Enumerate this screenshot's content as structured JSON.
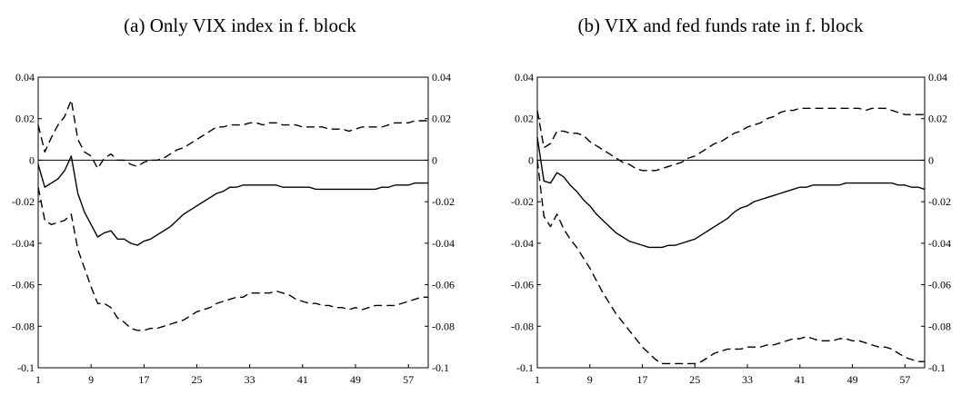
{
  "chart_data": [
    {
      "type": "line",
      "title": "(a)  Only VIX index in f. block",
      "xlabel": "",
      "ylabel": "",
      "xlim": [
        1,
        60
      ],
      "ylim": [
        -0.1,
        0.04
      ],
      "x_ticks": [
        "1",
        "9",
        "17",
        "25",
        "33",
        "41",
        "49",
        "57"
      ],
      "y_ticks": [
        "0.04",
        "0.02",
        "0",
        "-0.02",
        "-0.04",
        "-0.06",
        "-0.08",
        "-0.1"
      ],
      "zero_line": true,
      "series": [
        {
          "style": "solid",
          "x": [
            1,
            2,
            3,
            4,
            5,
            6,
            7,
            8,
            9,
            10,
            11,
            12,
            13,
            14,
            15,
            16,
            17,
            18,
            19,
            20,
            21,
            22,
            23,
            24,
            25,
            26,
            27,
            28,
            29,
            30,
            31,
            32,
            33,
            34,
            35,
            36,
            37,
            38,
            39,
            40,
            41,
            42,
            43,
            44,
            45,
            46,
            47,
            48,
            49,
            50,
            51,
            52,
            53,
            54,
            55,
            56,
            57,
            58,
            59,
            60
          ],
          "values": [
            -0.002,
            -0.013,
            -0.011,
            -0.009,
            -0.005,
            0.002,
            -0.016,
            -0.025,
            -0.031,
            -0.037,
            -0.035,
            -0.034,
            -0.038,
            -0.038,
            -0.04,
            -0.041,
            -0.039,
            -0.038,
            -0.036,
            -0.034,
            -0.032,
            -0.029,
            -0.026,
            -0.024,
            -0.022,
            -0.02,
            -0.018,
            -0.016,
            -0.015,
            -0.013,
            -0.013,
            -0.012,
            -0.012,
            -0.012,
            -0.012,
            -0.012,
            -0.012,
            -0.013,
            -0.013,
            -0.013,
            -0.013,
            -0.013,
            -0.014,
            -0.014,
            -0.014,
            -0.014,
            -0.014,
            -0.014,
            -0.014,
            -0.014,
            -0.014,
            -0.014,
            -0.013,
            -0.013,
            -0.012,
            -0.012,
            -0.012,
            -0.011,
            -0.011,
            -0.011
          ]
        },
        {
          "style": "dashed",
          "x": [
            1,
            2,
            3,
            4,
            5,
            6,
            7,
            8,
            9,
            10,
            11,
            12,
            13,
            14,
            15,
            16,
            17,
            18,
            19,
            20,
            21,
            22,
            23,
            24,
            25,
            26,
            27,
            28,
            29,
            30,
            31,
            32,
            33,
            34,
            35,
            36,
            37,
            38,
            39,
            40,
            41,
            42,
            43,
            44,
            45,
            46,
            47,
            48,
            49,
            50,
            51,
            52,
            53,
            54,
            55,
            56,
            57,
            58,
            59,
            60
          ],
          "values": [
            0.017,
            0.004,
            0.011,
            0.017,
            0.021,
            0.029,
            0.01,
            0.004,
            0.002,
            -0.004,
            0.001,
            0.003,
            0.0,
            0.0,
            -0.002,
            -0.003,
            -0.001,
            0.0,
            0.0,
            0.001,
            0.003,
            0.005,
            0.006,
            0.008,
            0.01,
            0.012,
            0.014,
            0.016,
            0.016,
            0.017,
            0.017,
            0.017,
            0.018,
            0.018,
            0.017,
            0.018,
            0.018,
            0.017,
            0.017,
            0.017,
            0.016,
            0.016,
            0.016,
            0.016,
            0.015,
            0.015,
            0.015,
            0.014,
            0.015,
            0.016,
            0.016,
            0.016,
            0.016,
            0.017,
            0.018,
            0.018,
            0.018,
            0.019,
            0.019,
            0.019
          ]
        },
        {
          "style": "dashed",
          "x": [
            1,
            2,
            3,
            4,
            5,
            6,
            7,
            8,
            9,
            10,
            11,
            12,
            13,
            14,
            15,
            16,
            17,
            18,
            19,
            20,
            21,
            22,
            23,
            24,
            25,
            26,
            27,
            28,
            29,
            30,
            31,
            32,
            33,
            34,
            35,
            36,
            37,
            38,
            39,
            40,
            41,
            42,
            43,
            44,
            45,
            46,
            47,
            48,
            49,
            50,
            51,
            52,
            53,
            54,
            55,
            56,
            57,
            58,
            59,
            60
          ],
          "values": [
            -0.013,
            -0.029,
            -0.031,
            -0.03,
            -0.029,
            -0.026,
            -0.043,
            -0.052,
            -0.061,
            -0.069,
            -0.069,
            -0.071,
            -0.076,
            -0.078,
            -0.081,
            -0.082,
            -0.082,
            -0.081,
            -0.081,
            -0.08,
            -0.079,
            -0.078,
            -0.077,
            -0.075,
            -0.073,
            -0.072,
            -0.071,
            -0.069,
            -0.068,
            -0.067,
            -0.066,
            -0.066,
            -0.064,
            -0.064,
            -0.064,
            -0.064,
            -0.063,
            -0.064,
            -0.065,
            -0.067,
            -0.068,
            -0.069,
            -0.069,
            -0.07,
            -0.07,
            -0.071,
            -0.071,
            -0.072,
            -0.071,
            -0.072,
            -0.071,
            -0.07,
            -0.07,
            -0.07,
            -0.07,
            -0.069,
            -0.068,
            -0.067,
            -0.066,
            -0.066
          ]
        }
      ]
    },
    {
      "type": "line",
      "title": "(b)  VIX and fed funds rate in f. block",
      "xlabel": "",
      "ylabel": "",
      "xlim": [
        1,
        60
      ],
      "ylim": [
        -0.1,
        0.04
      ],
      "x_ticks": [
        "1",
        "9",
        "17",
        "25",
        "33",
        "41",
        "49",
        "57"
      ],
      "y_ticks": [
        "0.04",
        "0.02",
        "0",
        "-0.02",
        "-0.04",
        "-0.06",
        "-0.08",
        "-0.1"
      ],
      "zero_line": true,
      "series": [
        {
          "style": "solid",
          "x": [
            1,
            2,
            3,
            4,
            5,
            6,
            7,
            8,
            9,
            10,
            11,
            12,
            13,
            14,
            15,
            16,
            17,
            18,
            19,
            20,
            21,
            22,
            23,
            24,
            25,
            26,
            27,
            28,
            29,
            30,
            31,
            32,
            33,
            34,
            35,
            36,
            37,
            38,
            39,
            40,
            41,
            42,
            43,
            44,
            45,
            46,
            47,
            48,
            49,
            50,
            51,
            52,
            53,
            54,
            55,
            56,
            57,
            58,
            59,
            60
          ],
          "values": [
            0.011,
            -0.01,
            -0.011,
            -0.006,
            -0.008,
            -0.012,
            -0.015,
            -0.019,
            -0.022,
            -0.026,
            -0.029,
            -0.032,
            -0.035,
            -0.037,
            -0.039,
            -0.04,
            -0.041,
            -0.042,
            -0.042,
            -0.042,
            -0.041,
            -0.041,
            -0.04,
            -0.039,
            -0.038,
            -0.036,
            -0.034,
            -0.032,
            -0.03,
            -0.028,
            -0.025,
            -0.023,
            -0.022,
            -0.02,
            -0.019,
            -0.018,
            -0.017,
            -0.016,
            -0.015,
            -0.014,
            -0.013,
            -0.013,
            -0.012,
            -0.012,
            -0.012,
            -0.012,
            -0.012,
            -0.011,
            -0.011,
            -0.011,
            -0.011,
            -0.011,
            -0.011,
            -0.011,
            -0.011,
            -0.012,
            -0.012,
            -0.013,
            -0.013,
            -0.014
          ]
        },
        {
          "style": "dashed",
          "x": [
            1,
            2,
            3,
            4,
            5,
            6,
            7,
            8,
            9,
            10,
            11,
            12,
            13,
            14,
            15,
            16,
            17,
            18,
            19,
            20,
            21,
            22,
            23,
            24,
            25,
            26,
            27,
            28,
            29,
            30,
            31,
            32,
            33,
            34,
            35,
            36,
            37,
            38,
            39,
            40,
            41,
            42,
            43,
            44,
            45,
            46,
            47,
            48,
            49,
            50,
            51,
            52,
            53,
            54,
            55,
            56,
            57,
            58,
            59,
            60
          ],
          "values": [
            0.024,
            0.006,
            0.008,
            0.014,
            0.014,
            0.013,
            0.013,
            0.012,
            0.009,
            0.007,
            0.005,
            0.003,
            0.001,
            -0.001,
            -0.002,
            -0.004,
            -0.005,
            -0.005,
            -0.005,
            -0.004,
            -0.003,
            -0.002,
            -0.001,
            0.001,
            0.002,
            0.004,
            0.006,
            0.008,
            0.009,
            0.011,
            0.013,
            0.014,
            0.016,
            0.017,
            0.018,
            0.02,
            0.021,
            0.023,
            0.024,
            0.024,
            0.025,
            0.025,
            0.025,
            0.025,
            0.025,
            0.025,
            0.025,
            0.025,
            0.025,
            0.025,
            0.024,
            0.025,
            0.025,
            0.025,
            0.024,
            0.023,
            0.022,
            0.022,
            0.022,
            0.022
          ]
        },
        {
          "style": "dashed",
          "x": [
            1,
            2,
            3,
            4,
            5,
            6,
            7,
            8,
            9,
            10,
            11,
            12,
            13,
            14,
            15,
            16,
            17,
            18,
            19,
            20,
            21,
            22,
            23,
            24,
            25,
            26,
            27,
            28,
            29,
            30,
            31,
            32,
            33,
            34,
            35,
            36,
            37,
            38,
            39,
            40,
            41,
            42,
            43,
            44,
            45,
            46,
            47,
            48,
            49,
            50,
            51,
            52,
            53,
            54,
            55,
            56,
            57,
            58,
            59,
            60
          ],
          "values": [
            0.0,
            -0.027,
            -0.032,
            -0.026,
            -0.033,
            -0.038,
            -0.042,
            -0.047,
            -0.052,
            -0.058,
            -0.064,
            -0.069,
            -0.074,
            -0.078,
            -0.082,
            -0.086,
            -0.09,
            -0.093,
            -0.096,
            -0.098,
            -0.098,
            -0.098,
            -0.098,
            -0.098,
            -0.098,
            -0.097,
            -0.095,
            -0.093,
            -0.092,
            -0.091,
            -0.091,
            -0.091,
            -0.09,
            -0.09,
            -0.09,
            -0.089,
            -0.089,
            -0.088,
            -0.087,
            -0.086,
            -0.086,
            -0.085,
            -0.086,
            -0.087,
            -0.087,
            -0.087,
            -0.086,
            -0.086,
            -0.087,
            -0.087,
            -0.088,
            -0.089,
            -0.09,
            -0.09,
            -0.091,
            -0.093,
            -0.095,
            -0.096,
            -0.097,
            -0.097
          ]
        }
      ]
    }
  ]
}
